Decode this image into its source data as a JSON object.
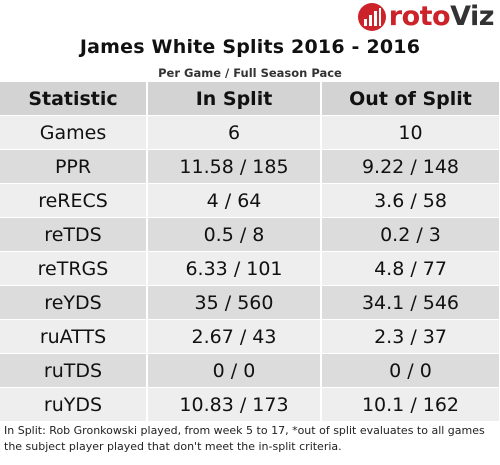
{
  "brand": {
    "logo_text_a": "roto",
    "logo_text_b": "Viz"
  },
  "chart_data": {
    "type": "table",
    "title": "James White Splits 2016 - 2016",
    "subtitle": "Per Game / Full Season Pace",
    "columns": [
      "Statistic",
      "In Split",
      "Out of Split"
    ],
    "rows": [
      [
        "Games",
        "6",
        "10"
      ],
      [
        "PPR",
        "11.58 / 185",
        "9.22 / 148"
      ],
      [
        "reRECS",
        "4 / 64",
        "3.6 / 58"
      ],
      [
        "reTDS",
        "0.5 / 8",
        "0.2 / 3"
      ],
      [
        "reTRGS",
        "6.33 / 101",
        "4.8 / 77"
      ],
      [
        "reYDS",
        "35 / 560",
        "34.1 / 546"
      ],
      [
        "ruATTS",
        "2.67 / 43",
        "2.3 / 37"
      ],
      [
        "ruTDS",
        "0 / 0",
        "0 / 0"
      ],
      [
        "ruYDS",
        "10.83 / 173",
        "10.1 / 162"
      ]
    ]
  },
  "footnote": "In Split: Rob Gronkowski played, from week 5 to 17,  *out of split evaluates to all games the subject player played that don't meet the in-split criteria.",
  "colors": {
    "header_bg": "#d3d3d3",
    "row_odd_bg": "#eeeeee",
    "row_even_bg": "#dcdcdc",
    "logo_red": "#cc2229",
    "logo_dark": "#333333"
  }
}
